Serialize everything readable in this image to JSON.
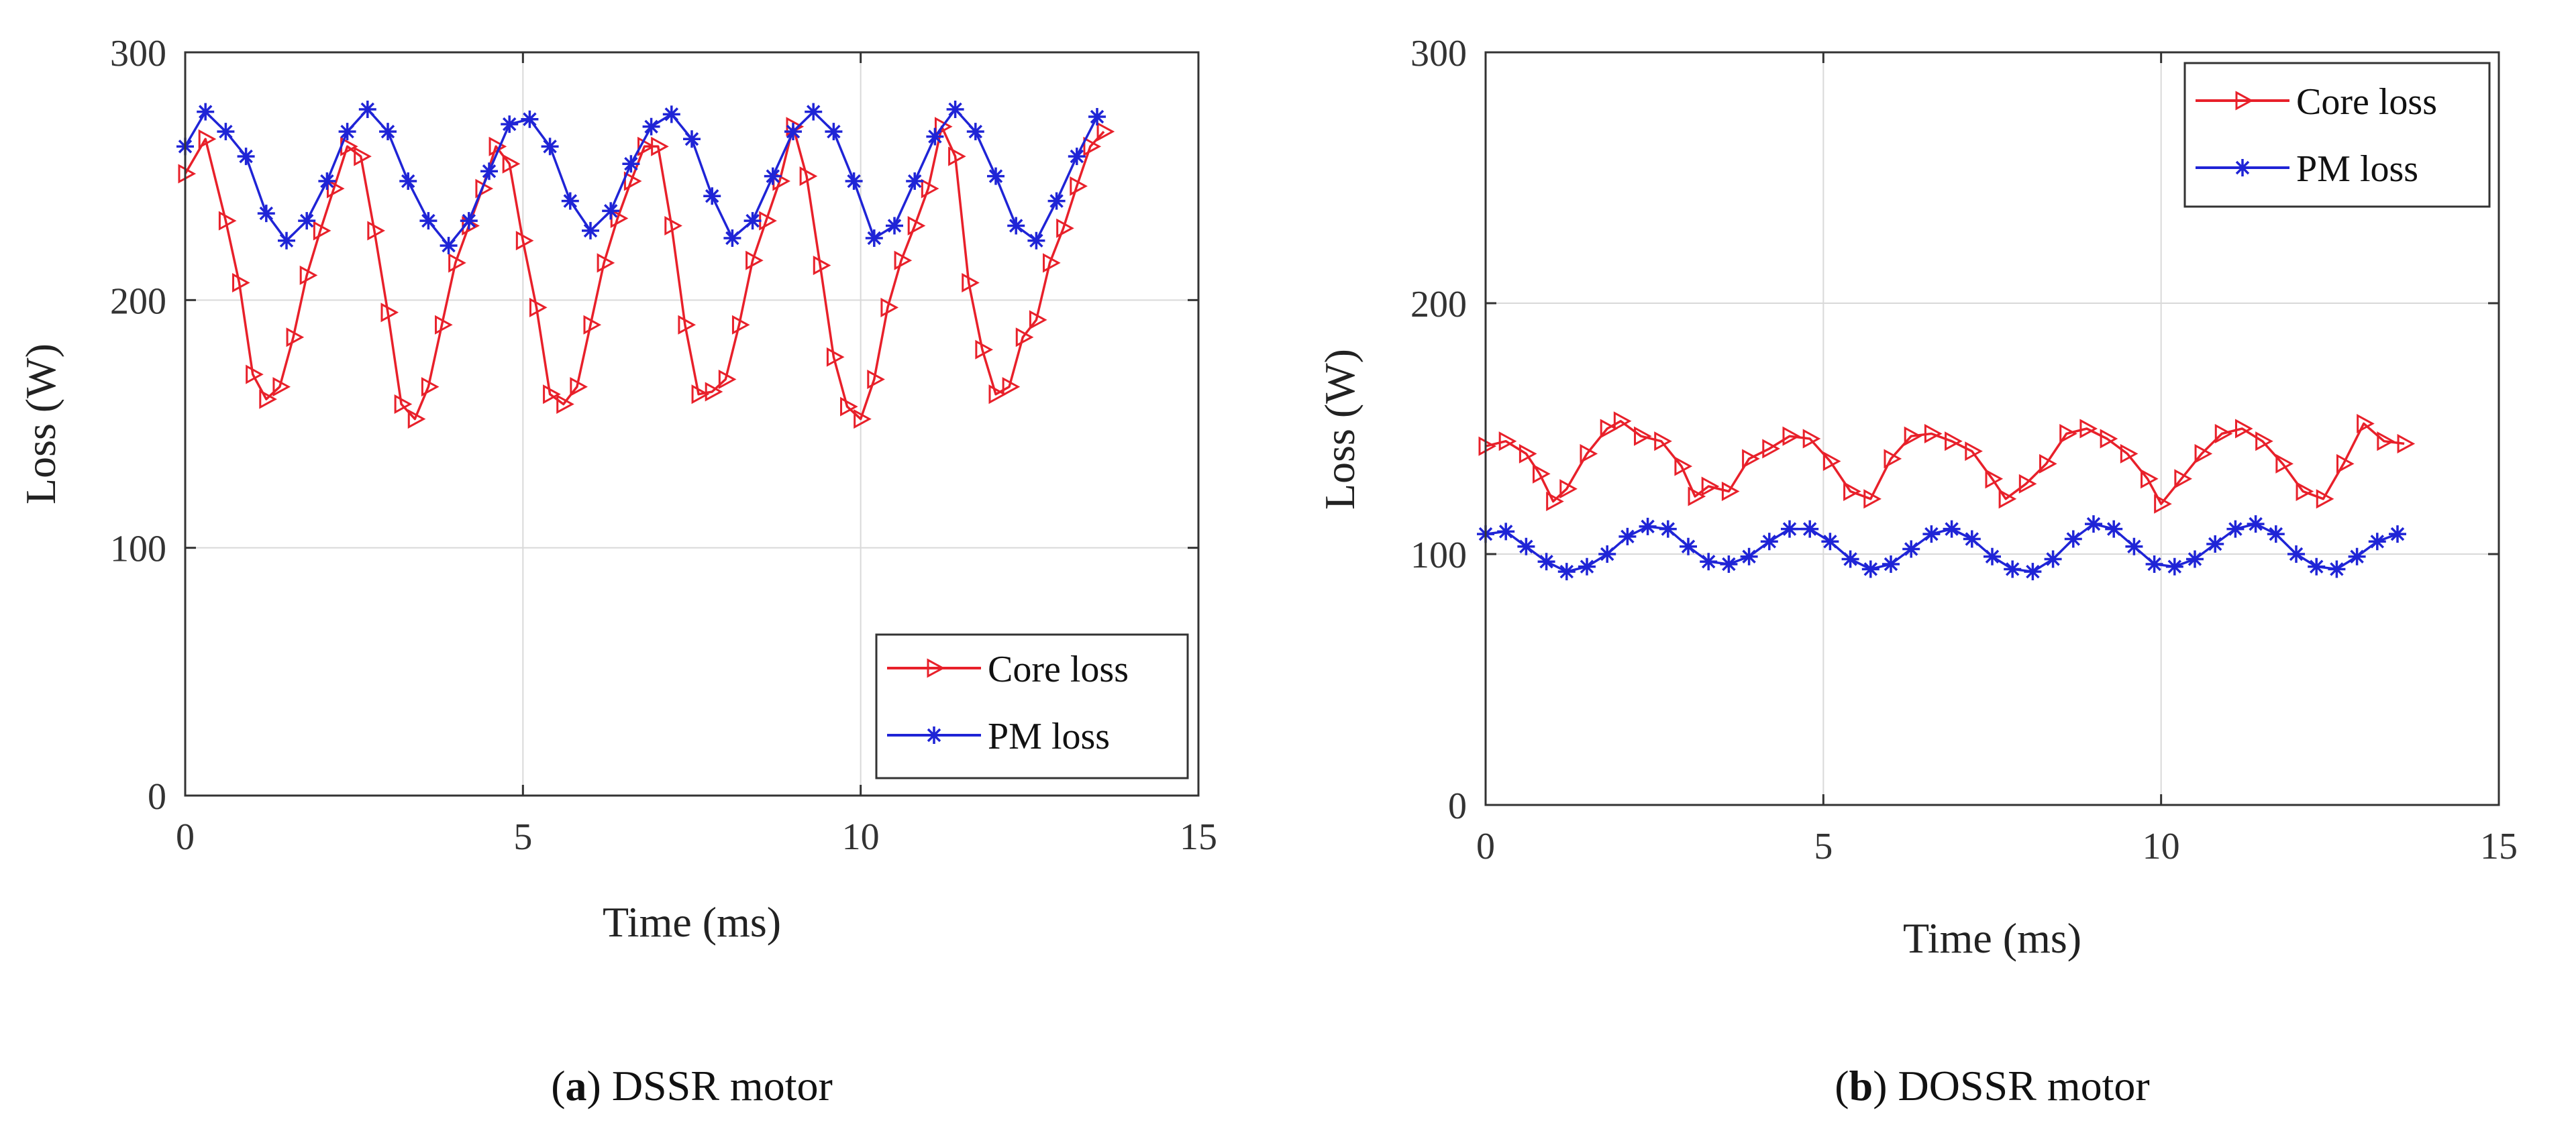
{
  "chart_data": [
    {
      "type": "line",
      "panel": "a",
      "caption_letter": "a",
      "caption_text": "DSSR motor",
      "xlabel": "Time (ms)",
      "ylabel": "Loss (W)",
      "xlim": [
        0,
        15
      ],
      "ylim": [
        0,
        300
      ],
      "xticks": [
        0,
        5,
        10,
        15
      ],
      "yticks": [
        0,
        100,
        200,
        300
      ],
      "grid": true,
      "legend": "bottom-right",
      "series": [
        {
          "name": "Core loss",
          "color": "#e8202a",
          "marker": "triangle-right",
          "x": [
            0,
            0.3,
            0.6,
            0.8,
            1.0,
            1.2,
            1.4,
            1.6,
            1.8,
            2.0,
            2.2,
            2.4,
            2.6,
            2.8,
            3.0,
            3.2,
            3.4,
            3.6,
            3.8,
            4.0,
            4.2,
            4.4,
            4.6,
            4.8,
            5.0,
            5.2,
            5.4,
            5.6,
            5.8,
            6.0,
            6.2,
            6.4,
            6.6,
            6.8,
            7.0,
            7.2,
            7.4,
            7.6,
            7.8,
            8.0,
            8.2,
            8.4,
            8.6,
            8.8,
            9.0,
            9.2,
            9.4,
            9.6,
            9.8,
            10.0,
            10.2,
            10.4,
            10.6,
            10.8,
            11.0,
            11.2,
            11.4,
            11.6,
            11.8,
            12.0,
            12.2,
            12.4,
            12.6,
            12.8,
            13.0,
            13.2,
            13.4,
            13.6
          ],
          "y": [
            251,
            265,
            232,
            207,
            170,
            160,
            165,
            185,
            210,
            228,
            245,
            262,
            258,
            228,
            195,
            158,
            152,
            165,
            190,
            215,
            230,
            245,
            262,
            255,
            224,
            197,
            162,
            158,
            165,
            190,
            215,
            233,
            248,
            262,
            262,
            230,
            190,
            162,
            163,
            168,
            190,
            216,
            232,
            248,
            270,
            250,
            214,
            177,
            157,
            152,
            168,
            197,
            216,
            230,
            245,
            270,
            258,
            207,
            180,
            162,
            165,
            185,
            192,
            215,
            229,
            246,
            262,
            268
          ]
        },
        {
          "name": "PM loss",
          "color": "#1f24d6",
          "marker": "asterisk",
          "x": [
            0,
            0.3,
            0.6,
            0.9,
            1.2,
            1.5,
            1.8,
            2.1,
            2.4,
            2.7,
            3.0,
            3.3,
            3.6,
            3.9,
            4.2,
            4.5,
            4.8,
            5.1,
            5.4,
            5.7,
            6.0,
            6.3,
            6.6,
            6.9,
            7.2,
            7.5,
            7.8,
            8.1,
            8.4,
            8.7,
            9.0,
            9.3,
            9.6,
            9.9,
            10.2,
            10.5,
            10.8,
            11.1,
            11.4,
            11.7,
            12.0,
            12.3,
            12.6,
            12.9,
            13.2,
            13.5
          ],
          "y": [
            262,
            276,
            268,
            258,
            235,
            224,
            232,
            248,
            268,
            277,
            268,
            248,
            232,
            222,
            232,
            252,
            271,
            273,
            262,
            240,
            228,
            236,
            255,
            270,
            275,
            265,
            242,
            225,
            232,
            250,
            268,
            276,
            268,
            248,
            225,
            230,
            248,
            266,
            277,
            268,
            250,
            230,
            224,
            240,
            258,
            274
          ]
        }
      ]
    },
    {
      "type": "line",
      "panel": "b",
      "caption_letter": "b",
      "caption_text": "DOSSR motor",
      "xlabel": "Time (ms)",
      "ylabel": "Loss (W)",
      "xlim": [
        0,
        15
      ],
      "ylim": [
        0,
        300
      ],
      "xticks": [
        0,
        5,
        10,
        15
      ],
      "yticks": [
        0,
        100,
        200,
        300
      ],
      "grid": true,
      "legend": "top-right",
      "series": [
        {
          "name": "Core loss",
          "color": "#e8202a",
          "marker": "triangle-right",
          "x": [
            0,
            0.3,
            0.6,
            0.8,
            1.0,
            1.2,
            1.5,
            1.8,
            2.0,
            2.3,
            2.6,
            2.9,
            3.1,
            3.3,
            3.6,
            3.9,
            4.2,
            4.5,
            4.8,
            5.1,
            5.4,
            5.7,
            6.0,
            6.3,
            6.6,
            6.9,
            7.2,
            7.5,
            7.7,
            8.0,
            8.3,
            8.6,
            8.9,
            9.2,
            9.5,
            9.8,
            10.0,
            10.3,
            10.6,
            10.9,
            11.2,
            11.5,
            11.8,
            12.1,
            12.4,
            12.7,
            13.0,
            13.3,
            13.6
          ],
          "y": [
            143,
            145,
            140,
            132,
            121,
            126,
            140,
            150,
            153,
            147,
            145,
            135,
            123,
            127,
            125,
            138,
            142,
            147,
            146,
            137,
            125,
            122,
            138,
            147,
            148,
            145,
            141,
            130,
            122,
            128,
            136,
            148,
            150,
            146,
            140,
            130,
            120,
            130,
            140,
            148,
            150,
            145,
            136,
            125,
            122,
            136,
            152,
            145,
            144
          ]
        },
        {
          "name": "PM loss",
          "color": "#1f24d6",
          "marker": "asterisk",
          "x": [
            0,
            0.3,
            0.6,
            0.9,
            1.2,
            1.5,
            1.8,
            2.1,
            2.4,
            2.7,
            3.0,
            3.3,
            3.6,
            3.9,
            4.2,
            4.5,
            4.8,
            5.1,
            5.4,
            5.7,
            6.0,
            6.3,
            6.6,
            6.9,
            7.2,
            7.5,
            7.8,
            8.1,
            8.4,
            8.7,
            9.0,
            9.3,
            9.6,
            9.9,
            10.2,
            10.5,
            10.8,
            11.1,
            11.4,
            11.7,
            12.0,
            12.3,
            12.6,
            12.9,
            13.2,
            13.5
          ],
          "y": [
            108,
            109,
            103,
            97,
            93,
            95,
            100,
            107,
            111,
            110,
            103,
            97,
            96,
            99,
            105,
            110,
            110,
            105,
            98,
            94,
            96,
            102,
            108,
            110,
            106,
            99,
            94,
            93,
            98,
            106,
            112,
            110,
            103,
            96,
            95,
            98,
            104,
            110,
            112,
            108,
            100,
            95,
            94,
            99,
            105,
            108
          ]
        }
      ]
    }
  ]
}
